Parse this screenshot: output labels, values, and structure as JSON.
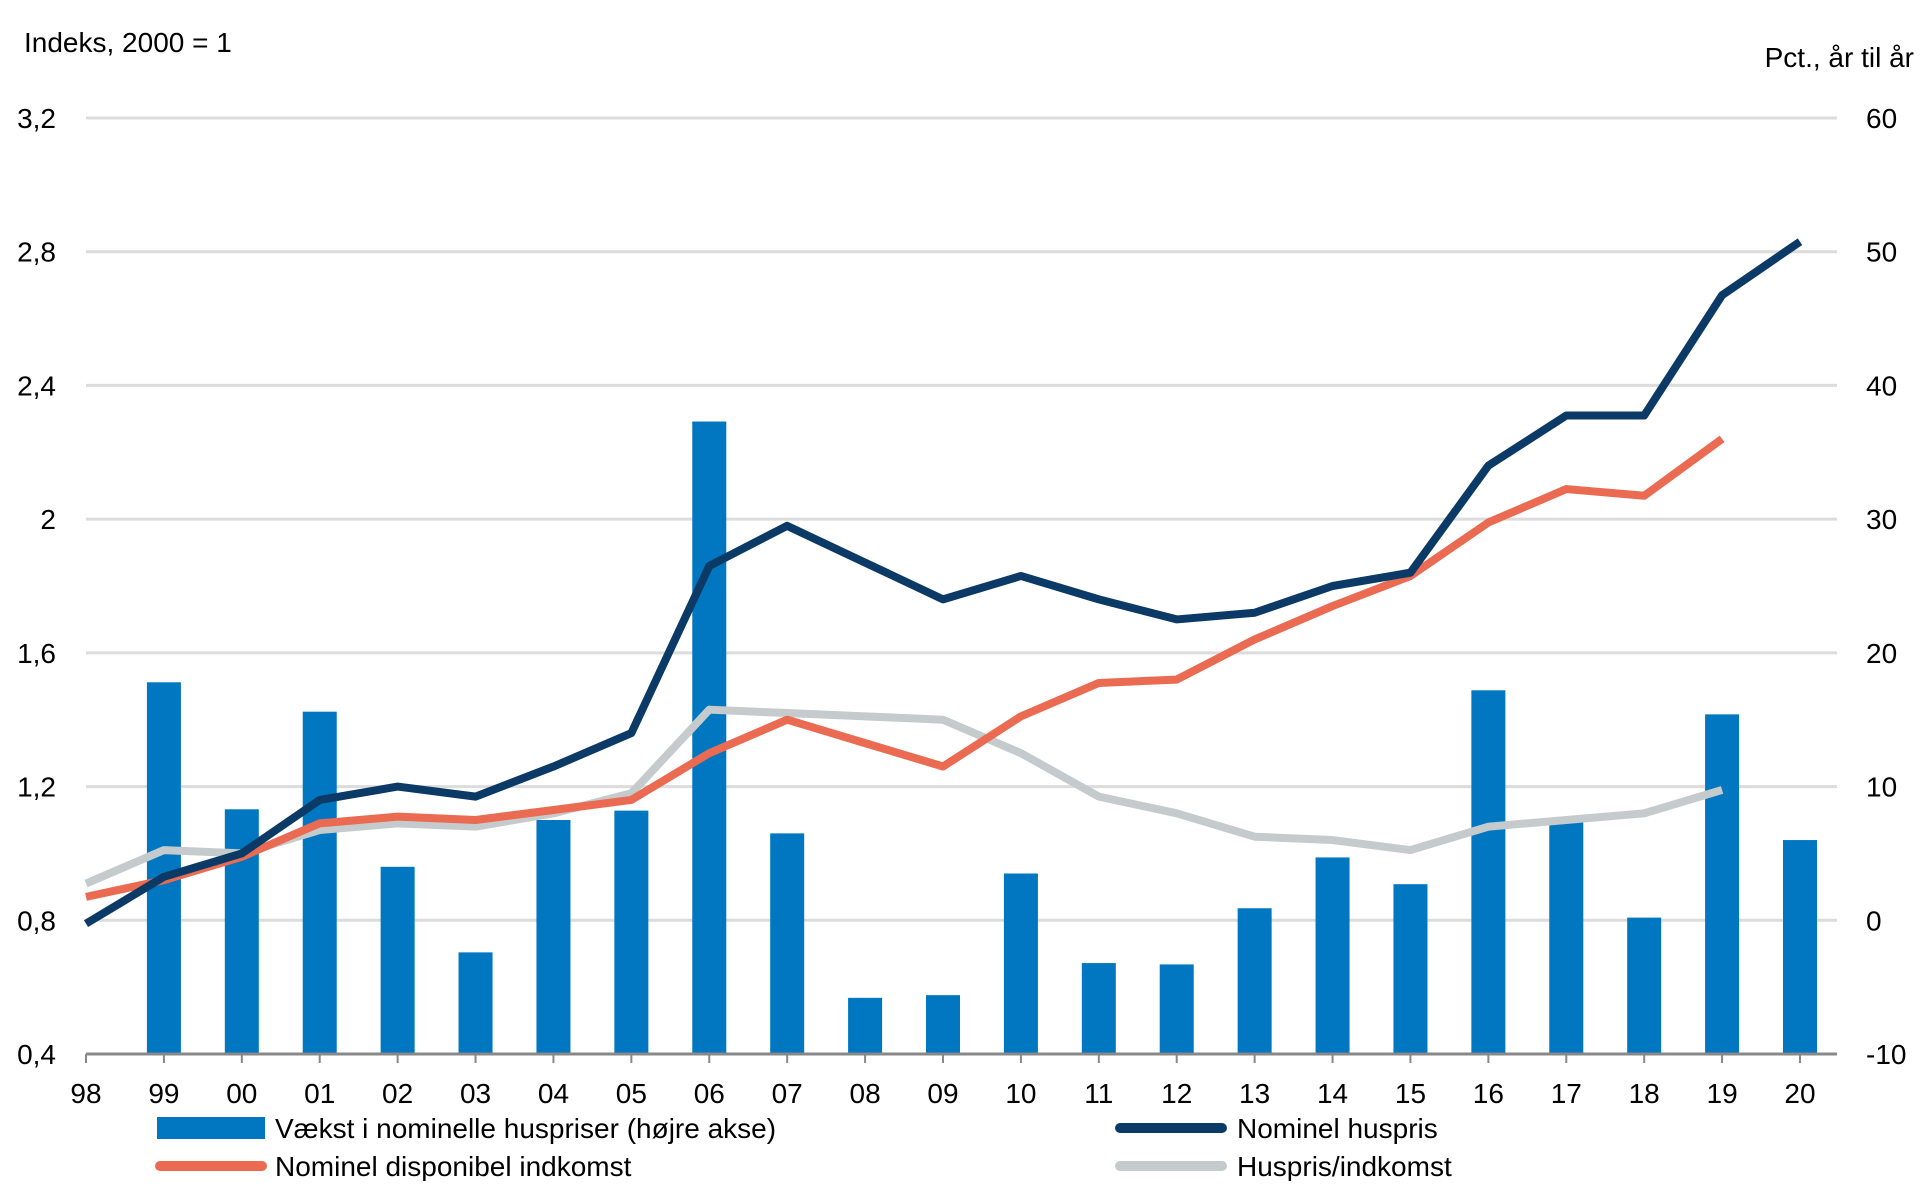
{
  "chart_data": {
    "type": "bar+line",
    "left_axis_label": "Indeks, 2000 = 1",
    "right_axis_label": "Pct., år til år",
    "categories": [
      "98",
      "99",
      "00",
      "01",
      "02",
      "03",
      "04",
      "05",
      "06",
      "07",
      "08",
      "09",
      "10",
      "11",
      "12",
      "13",
      "14",
      "15",
      "16",
      "17",
      "18",
      "19",
      "20"
    ],
    "left_ylim": [
      0.4,
      3.2
    ],
    "left_ticks": [
      "0,4",
      "0,8",
      "1,2",
      "1,6",
      "2",
      "2,4",
      "2,8",
      "3,2"
    ],
    "left_tick_values": [
      0.4,
      0.8,
      1.2,
      1.6,
      2.0,
      2.4,
      2.8,
      3.2
    ],
    "right_ylim": [
      -10,
      60
    ],
    "right_ticks": [
      "-10",
      "0",
      "10",
      "20",
      "30",
      "40",
      "50",
      "60"
    ],
    "right_tick_values": [
      -10,
      0,
      10,
      20,
      30,
      40,
      50,
      60
    ],
    "grid": true,
    "legend_placement": "bottom",
    "bars": {
      "name": "Vækst i nominelle huspriser (højre akse)",
      "color": "#0077c0",
      "axis": "right",
      "values": [
        null,
        17.8,
        8.3,
        15.6,
        4.0,
        -2.4,
        7.5,
        8.2,
        37.3,
        6.5,
        -5.8,
        -5.6,
        3.5,
        -3.2,
        -3.3,
        0.9,
        4.7,
        2.7,
        17.2,
        7.5,
        0.2,
        15.4,
        6.0
      ]
    },
    "series": [
      {
        "name": "Nominel huspris",
        "color": "#0b3a66",
        "axis": "left",
        "values": [
          0.79,
          0.93,
          1.0,
          1.16,
          1.2,
          1.17,
          1.26,
          1.36,
          1.86,
          1.98,
          1.87,
          1.76,
          1.83,
          1.76,
          1.7,
          1.72,
          1.8,
          1.84,
          2.16,
          2.31,
          2.31,
          2.67,
          2.83
        ]
      },
      {
        "name": "Nominel disponibel indkomst",
        "color": "#ea6a52",
        "axis": "left",
        "values": [
          0.87,
          0.92,
          0.99,
          1.09,
          1.11,
          1.1,
          1.13,
          1.16,
          1.3,
          1.4,
          1.33,
          1.26,
          1.41,
          1.51,
          1.52,
          1.64,
          1.74,
          1.83,
          1.99,
          2.09,
          2.07,
          2.24,
          null
        ]
      },
      {
        "name": "Huspris/indkomst",
        "color": "#c5cbcd",
        "axis": "left",
        "values": [
          0.91,
          1.01,
          1.0,
          1.07,
          1.09,
          1.08,
          1.12,
          1.18,
          1.43,
          1.42,
          1.41,
          1.4,
          1.3,
          1.17,
          1.12,
          1.05,
          1.04,
          1.01,
          1.08,
          1.1,
          1.12,
          1.19,
          null
        ]
      }
    ]
  }
}
